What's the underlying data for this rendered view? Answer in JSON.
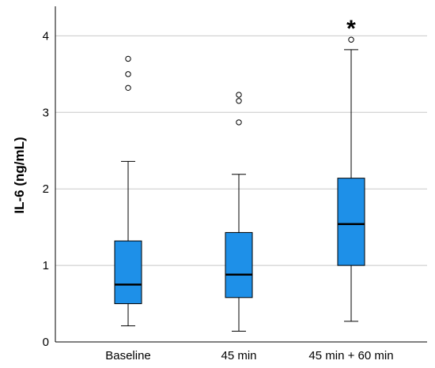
{
  "chart_data": {
    "type": "box",
    "categories": [
      "Baseline",
      "45 min",
      "45 min + 60 min"
    ],
    "boxes": [
      {
        "category": "Baseline",
        "whisker_low": 0.21,
        "q1": 0.5,
        "median": 0.75,
        "q3": 1.32,
        "whisker_high": 2.36,
        "outliers": [
          3.32,
          3.5,
          3.7
        ]
      },
      {
        "category": "45 min",
        "whisker_low": 0.14,
        "q1": 0.58,
        "median": 0.88,
        "q3": 1.43,
        "whisker_high": 2.19,
        "outliers": [
          2.87,
          3.15,
          3.23
        ]
      },
      {
        "category": "45 min + 60 min",
        "whisker_low": 0.27,
        "q1": 1.0,
        "median": 1.54,
        "q3": 2.14,
        "whisker_high": 3.82,
        "outliers": [
          3.95
        ]
      }
    ],
    "ylabel": "IL-6 (ng/mL)",
    "xlabel": "",
    "ylim": [
      0,
      4.3
    ],
    "yticks": [
      0,
      1,
      2,
      3,
      4
    ],
    "grid": true,
    "annotations": [
      {
        "category": "45 min + 60 min",
        "text": "*"
      }
    ],
    "colors": {
      "box_fill": "#1e90e8",
      "line": "#000000",
      "grid": "#c8c8c8",
      "axis": "#000000"
    }
  }
}
